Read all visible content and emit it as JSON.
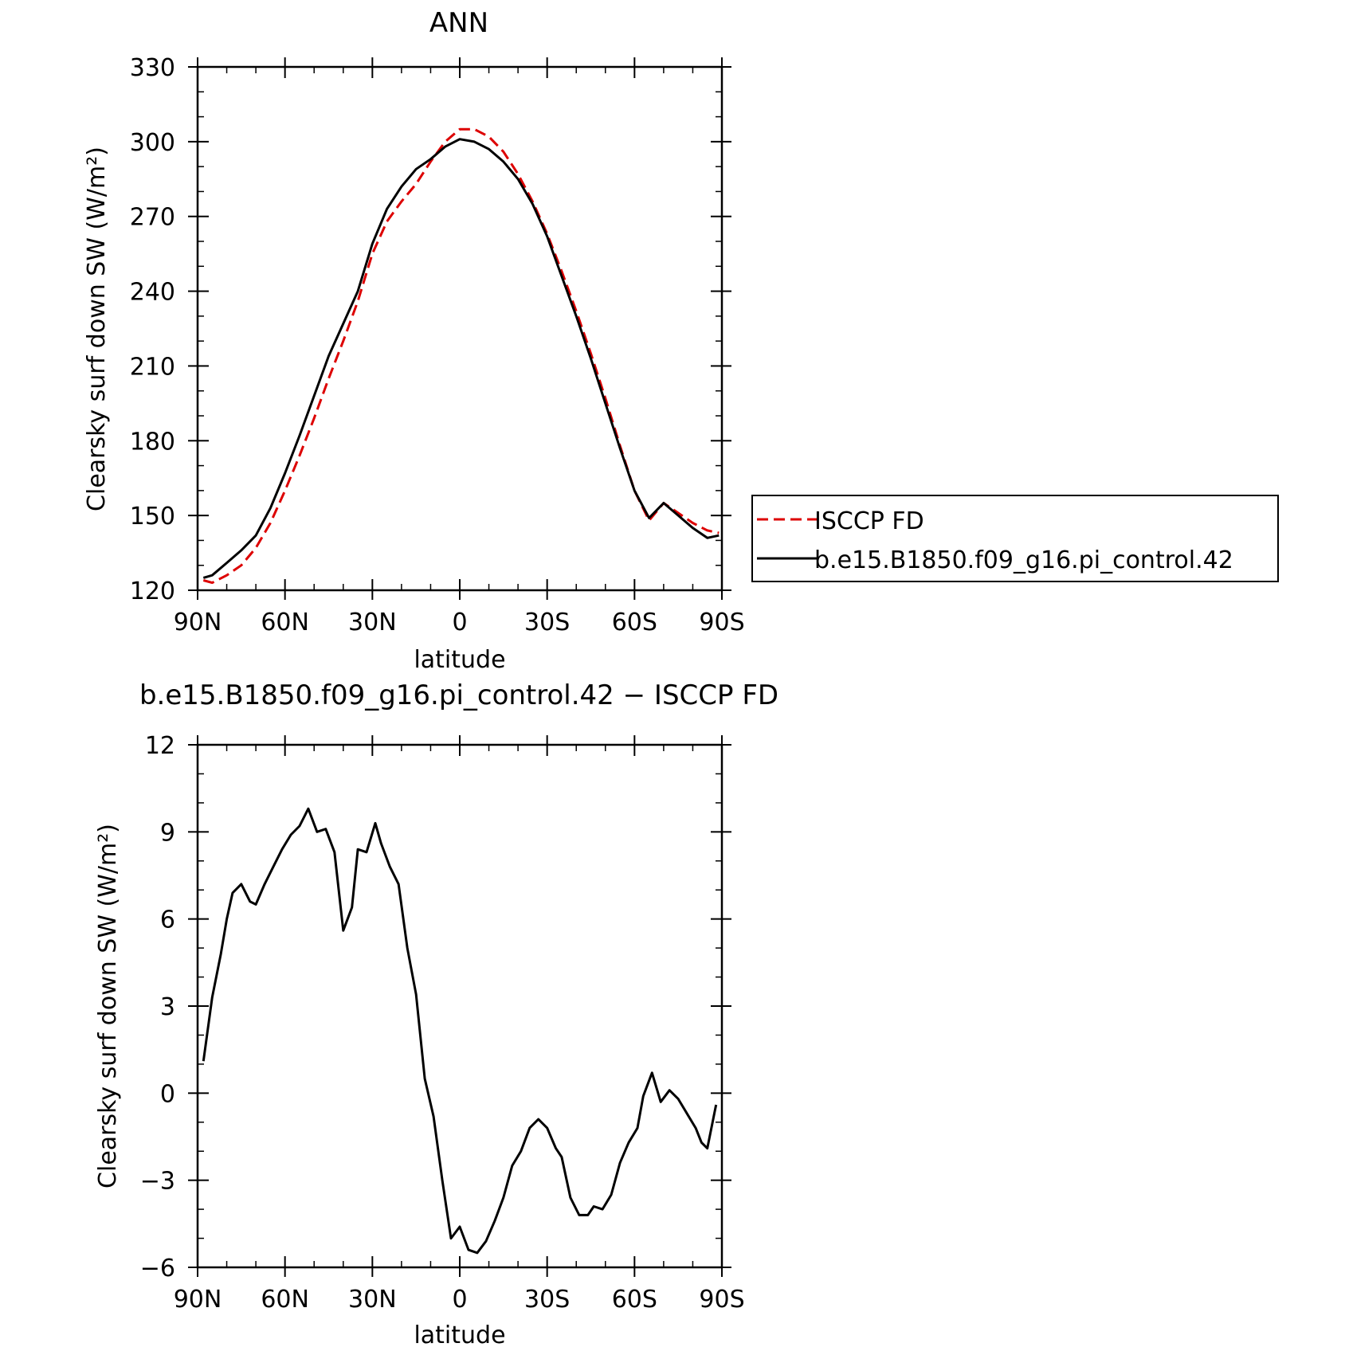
{
  "chart_data": [
    {
      "type": "line",
      "title": "ANN",
      "xlabel": "latitude",
      "ylabel": "Clearsky surf down SW (W/m²)",
      "xlim": [
        90,
        -90
      ],
      "ylim": [
        120,
        330
      ],
      "xticks": [
        90,
        60,
        30,
        0,
        -30,
        -60,
        -90
      ],
      "xtick_labels": [
        "90N",
        "60N",
        "30N",
        "0",
        "30S",
        "60S",
        "90S"
      ],
      "yticks": [
        120,
        150,
        180,
        210,
        240,
        270,
        300,
        330
      ],
      "ytick_labels": [
        "120",
        "150",
        "180",
        "210",
        "240",
        "270",
        "300",
        "330"
      ],
      "legend": "right",
      "series": [
        {
          "name": "ISCCP FD",
          "color": "#dd0000",
          "dash": "dashed",
          "x": [
            88,
            85,
            80,
            75,
            70,
            65,
            60,
            55,
            50,
            45,
            40,
            35,
            30,
            25,
            20,
            15,
            10,
            5,
            0,
            -5,
            -10,
            -15,
            -20,
            -25,
            -30,
            -35,
            -40,
            -45,
            -50,
            -55,
            -60,
            -65,
            -70,
            -75,
            -80,
            -85,
            -89
          ],
          "values": [
            124,
            123,
            126,
            130,
            137,
            147,
            160,
            174,
            189,
            205,
            220,
            236,
            255,
            268,
            276,
            283,
            292,
            300,
            305,
            305,
            302,
            296,
            287,
            276,
            263,
            248,
            232,
            215,
            197,
            178,
            160,
            148,
            155,
            151,
            147,
            144,
            143
          ]
        },
        {
          "name": "b.e15.B1850.f09_g16.pi_control.42",
          "color": "#000000",
          "dash": "solid",
          "x": [
            88,
            85,
            80,
            75,
            70,
            65,
            60,
            55,
            50,
            45,
            40,
            35,
            30,
            25,
            20,
            15,
            10,
            5,
            0,
            -5,
            -10,
            -15,
            -20,
            -25,
            -30,
            -35,
            -40,
            -45,
            -50,
            -55,
            -60,
            -65,
            -70,
            -75,
            -80,
            -85,
            -89
          ],
          "values": [
            125,
            126,
            131,
            136,
            142,
            153,
            167,
            182,
            198,
            214,
            227,
            240,
            259,
            273,
            282,
            289,
            293,
            298,
            301,
            300,
            297,
            292,
            285,
            275,
            262,
            246,
            230,
            213,
            195,
            177,
            160,
            149,
            155,
            150,
            145,
            141,
            142
          ]
        }
      ]
    },
    {
      "type": "line",
      "title": "b.e15.B1850.f09_g16.pi_control.42 − ISCCP FD",
      "xlabel": "latitude",
      "ylabel": "Clearsky surf down SW (W/m²)",
      "xlim": [
        90,
        -90
      ],
      "ylim": [
        -6,
        12
      ],
      "xticks": [
        90,
        60,
        30,
        0,
        -30,
        -60,
        -90
      ],
      "xtick_labels": [
        "90N",
        "60N",
        "30N",
        "0",
        "30S",
        "60S",
        "90S"
      ],
      "yticks": [
        -6,
        -3,
        0,
        3,
        6,
        9,
        12
      ],
      "ytick_labels": [
        "−6",
        "−3",
        "0",
        "3",
        "6",
        "9",
        "12"
      ],
      "series": [
        {
          "color": "#000000",
          "dash": "solid",
          "x": [
            88,
            85,
            82,
            80,
            78,
            75,
            72,
            70,
            67,
            64,
            61,
            58,
            55,
            52,
            49,
            46,
            43,
            40,
            37,
            35,
            32,
            29,
            27,
            24,
            21,
            18,
            15,
            12,
            9,
            6,
            3,
            0,
            -3,
            -6,
            -9,
            -12,
            -15,
            -18,
            -21,
            -24,
            -27,
            -30,
            -33,
            -35,
            -38,
            -41,
            -44,
            -46,
            -49,
            -52,
            -55,
            -58,
            -61,
            -63,
            -66,
            -69,
            -72,
            -75,
            -78,
            -81,
            -83,
            -85,
            -88
          ],
          "values": [
            1.1,
            3.3,
            4.8,
            6.0,
            6.9,
            7.2,
            6.6,
            6.5,
            7.2,
            7.8,
            8.4,
            8.9,
            9.2,
            9.8,
            9.0,
            9.1,
            8.3,
            5.6,
            6.4,
            8.4,
            8.3,
            9.3,
            8.6,
            7.8,
            7.2,
            5.0,
            3.4,
            0.5,
            -0.8,
            -3.0,
            -5.0,
            -4.6,
            -5.4,
            -5.5,
            -5.1,
            -4.4,
            -3.6,
            -2.5,
            -2.0,
            -1.2,
            -0.9,
            -1.2,
            -1.9,
            -2.2,
            -3.6,
            -4.2,
            -4.2,
            -3.9,
            -4.0,
            -3.5,
            -2.4,
            -1.7,
            -1.2,
            -0.1,
            0.7,
            -0.3,
            0.1,
            -0.2,
            -0.7,
            -1.2,
            -1.7,
            -1.9,
            -0.4
          ]
        }
      ]
    }
  ]
}
